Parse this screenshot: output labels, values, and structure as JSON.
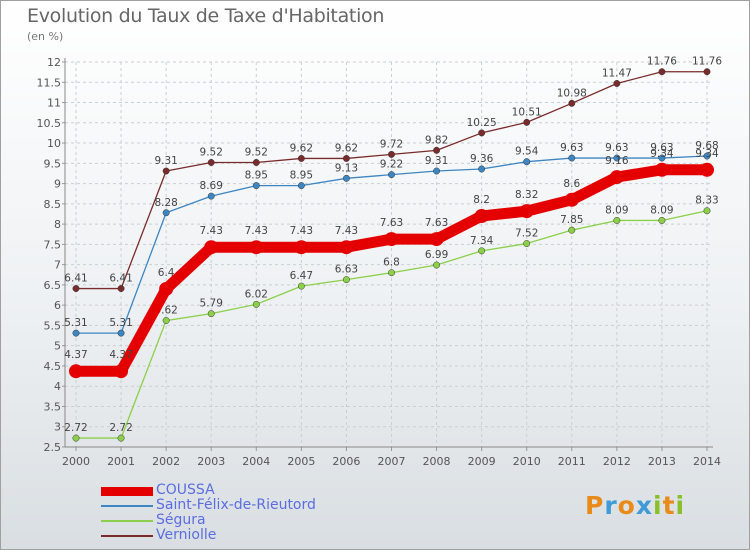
{
  "title": "Evolution du Taux de Taxe d'Habitation",
  "subtitle": "(en %)",
  "logo": [
    "P",
    "r",
    "o",
    "x",
    "i",
    "t",
    "i"
  ],
  "logo_colors": [
    "#e88b1a",
    "#3f9ad6",
    "#e88b1a",
    "#3f9ad6",
    "#8bbf2a",
    "#e88b1a",
    "#8bbf2a"
  ],
  "chart_data": {
    "type": "line",
    "x": [
      "2000",
      "2001",
      "2002",
      "2003",
      "2004",
      "2005",
      "2006",
      "2007",
      "2008",
      "2009",
      "2010",
      "2011",
      "2012",
      "2013",
      "2014"
    ],
    "ylim": [
      2.5,
      12
    ],
    "yticks": [
      "2.5",
      "3",
      "3.5",
      "4",
      "4.5",
      "5",
      "5.5",
      "6",
      "6.5",
      "7",
      "7.5",
      "8",
      "8.5",
      "9",
      "9.5",
      "10",
      "10.5",
      "11",
      "11.5",
      "12"
    ],
    "grid": true,
    "legend_position": "bottom-left",
    "series": [
      {
        "name": "Verniolle",
        "color": "#7a2b2b",
        "values": [
          6.41,
          6.41,
          9.31,
          9.52,
          9.52,
          9.62,
          9.62,
          9.72,
          9.82,
          10.25,
          10.51,
          10.98,
          11.47,
          11.76,
          11.76
        ],
        "labels": [
          "6.41",
          "6.41",
          "9.31",
          "9.52",
          "9.52",
          "9.62",
          "9.62",
          "9.72",
          "9.82",
          "10.25",
          "10.51",
          "10.98",
          "11.47",
          "11.76",
          "11.76"
        ]
      },
      {
        "name": "Saint-Félix-de-Rieutord",
        "color": "#3d86c2",
        "values": [
          5.31,
          5.31,
          8.28,
          8.69,
          8.95,
          8.95,
          9.13,
          9.22,
          9.31,
          9.36,
          9.54,
          9.63,
          9.63,
          9.63,
          9.68
        ],
        "labels": [
          "5.31",
          "5.31",
          "8.28",
          "8.69",
          "8.95",
          "8.95",
          "9.13",
          "9.22",
          "9.31",
          "9.36",
          "9.54",
          "9.63",
          "9.63",
          "9.63",
          "9.68"
        ]
      },
      {
        "name": "Ségura",
        "color": "#8ccf4a",
        "values": [
          2.72,
          2.72,
          5.62,
          5.79,
          6.02,
          6.47,
          6.63,
          6.8,
          6.99,
          7.34,
          7.52,
          7.85,
          8.09,
          8.09,
          8.33
        ],
        "labels": [
          "2.72",
          "2.72",
          "5.62",
          "5.79",
          "6.02",
          "6.47",
          "6.63",
          "6.8",
          "6.99",
          "7.34",
          "7.52",
          "7.85",
          "8.09",
          "8.09",
          "8.33"
        ]
      },
      {
        "name": "COUSSA",
        "color": "#e40000",
        "values": [
          4.37,
          4.37,
          6.4,
          7.43,
          7.43,
          7.43,
          7.43,
          7.63,
          7.63,
          8.2,
          8.32,
          8.6,
          9.16,
          9.34,
          9.34
        ],
        "labels": [
          "4.37",
          "4.37",
          "6.4",
          "7.43",
          "7.43",
          "7.43",
          "7.43",
          "7.63",
          "7.63",
          "8.2",
          "8.32",
          "8.6",
          "9.16",
          "9.34",
          "9.34"
        ]
      }
    ],
    "legend_order": [
      "COUSSA",
      "Saint-Félix-de-Rieutord",
      "Ségura",
      "Verniolle"
    ]
  }
}
